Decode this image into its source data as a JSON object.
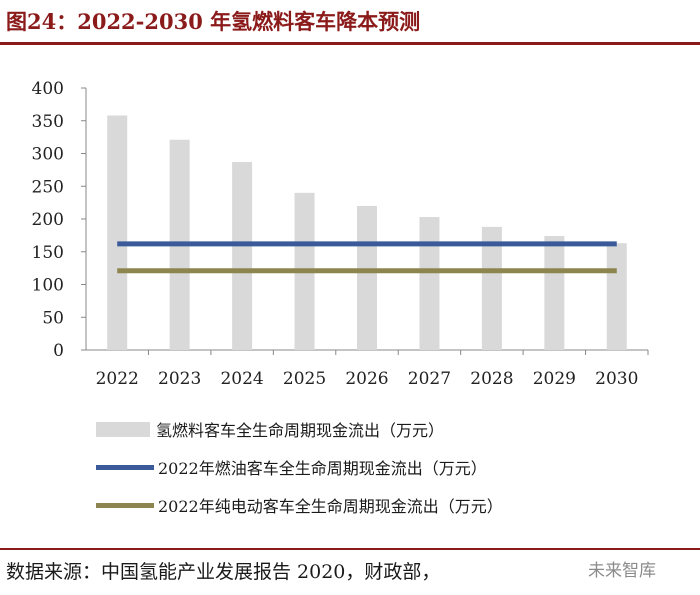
{
  "figure": {
    "title": "图24：2022-2030 年氢燃料客车降本预测",
    "source": "数据来源：中国氢能产业发展报告 2020，财政部，",
    "watermark": "未来智库"
  },
  "chart_data": {
    "type": "bar",
    "title": "2022-2030 年氢燃料客车降本预测",
    "categories": [
      "2022",
      "2023",
      "2024",
      "2025",
      "2026",
      "2027",
      "2028",
      "2029",
      "2030"
    ],
    "series": [
      {
        "name": "氢燃料客车全生命周期现金流出（万元）",
        "kind": "bar",
        "color": "#d9d9d9",
        "values": [
          358,
          321,
          287,
          240,
          220,
          203,
          188,
          174,
          163
        ]
      },
      {
        "name": "2022年燃油客车全生命周期现金流出（万元）",
        "kind": "line",
        "color": "#3a5a9a",
        "values": [
          162,
          162,
          162,
          162,
          162,
          162,
          162,
          162,
          162
        ]
      },
      {
        "name": "2022年纯电动客车全生命周期现金流出（万元）",
        "kind": "line",
        "color": "#8c8550",
        "values": [
          121,
          121,
          121,
          121,
          121,
          121,
          121,
          121,
          121
        ]
      }
    ],
    "ylim": [
      0,
      400
    ],
    "yticks": [
      0,
      50,
      100,
      150,
      200,
      250,
      300,
      350,
      400
    ],
    "grid": false,
    "legend_position": "bottom",
    "xlabel": "",
    "ylabel": ""
  }
}
